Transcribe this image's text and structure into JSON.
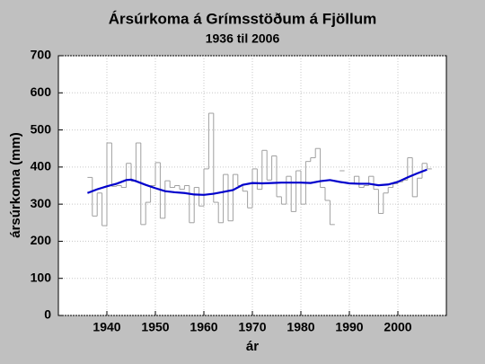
{
  "chart_data": {
    "type": "line",
    "title": "Ársúrkoma á Grímsstöðum á Fjöllum",
    "subtitle": "1936 til 2006",
    "x_label": "ár",
    "y_label": "ársúrkoma (mm)",
    "xlim": [
      1930,
      2010
    ],
    "xticks": [
      1940,
      1950,
      1960,
      1970,
      1980,
      1990,
      2000
    ],
    "ylim": [
      0,
      700
    ],
    "yticks": [
      0,
      100,
      200,
      300,
      400,
      500,
      600,
      700
    ],
    "grid": true,
    "series": [
      {
        "color": "#a0a0a0",
        "step": true,
        "x": [
          1936,
          1937,
          1938,
          1939,
          1940,
          1941,
          1942,
          1943,
          1944,
          1945,
          1946,
          1947,
          1948,
          1949,
          1950,
          1951,
          1952,
          1953,
          1954,
          1955,
          1956,
          1957,
          1958,
          1959,
          1960,
          1961,
          1962,
          1963,
          1964,
          1965,
          1966,
          1967,
          1968,
          1969,
          1970,
          1971,
          1972,
          1973,
          1974,
          1975,
          1976,
          1977,
          1978,
          1979,
          1980,
          1981,
          1982,
          1983,
          1984,
          1985,
          1986,
          1987,
          1988,
          1989,
          1990,
          1991,
          1992,
          1993,
          1994,
          1995,
          1996,
          1997,
          1998,
          1999,
          2000,
          2001,
          2002,
          2003,
          2004,
          2005,
          2006
        ],
        "values": [
          372,
          268,
          330,
          242,
          465,
          348,
          350,
          345,
          410,
          362,
          465,
          245,
          305,
          350,
          412,
          262,
          363,
          345,
          350,
          340,
          350,
          250,
          345,
          295,
          395,
          545,
          305,
          250,
          380,
          255,
          380,
          350,
          335,
          290,
          395,
          340,
          445,
          365,
          430,
          320,
          300,
          375,
          280,
          390,
          300,
          415,
          425,
          450,
          345,
          310,
          245,
          null,
          390,
          null,
          355,
          375,
          345,
          350,
          375,
          340,
          275,
          330,
          345,
          355,
          360,
          365,
          425,
          320,
          370,
          410,
          395
        ]
      },
      {
        "color": "#0000cc",
        "x": [
          1936,
          1938,
          1940,
          1942,
          1944,
          1945,
          1946,
          1948,
          1950,
          1952,
          1954,
          1956,
          1958,
          1960,
          1962,
          1964,
          1966,
          1968,
          1970,
          1972,
          1974,
          1976,
          1978,
          1980,
          1982,
          1984,
          1986,
          1988,
          1990,
          1992,
          1994,
          1996,
          1998,
          2000,
          2002,
          2004,
          2006
        ],
        "values": [
          330,
          340,
          348,
          355,
          365,
          366,
          362,
          352,
          343,
          335,
          332,
          330,
          326,
          325,
          328,
          333,
          338,
          352,
          357,
          356,
          357,
          358,
          358,
          358,
          357,
          362,
          365,
          360,
          356,
          355,
          355,
          351,
          353,
          360,
          372,
          383,
          393
        ]
      }
    ]
  }
}
